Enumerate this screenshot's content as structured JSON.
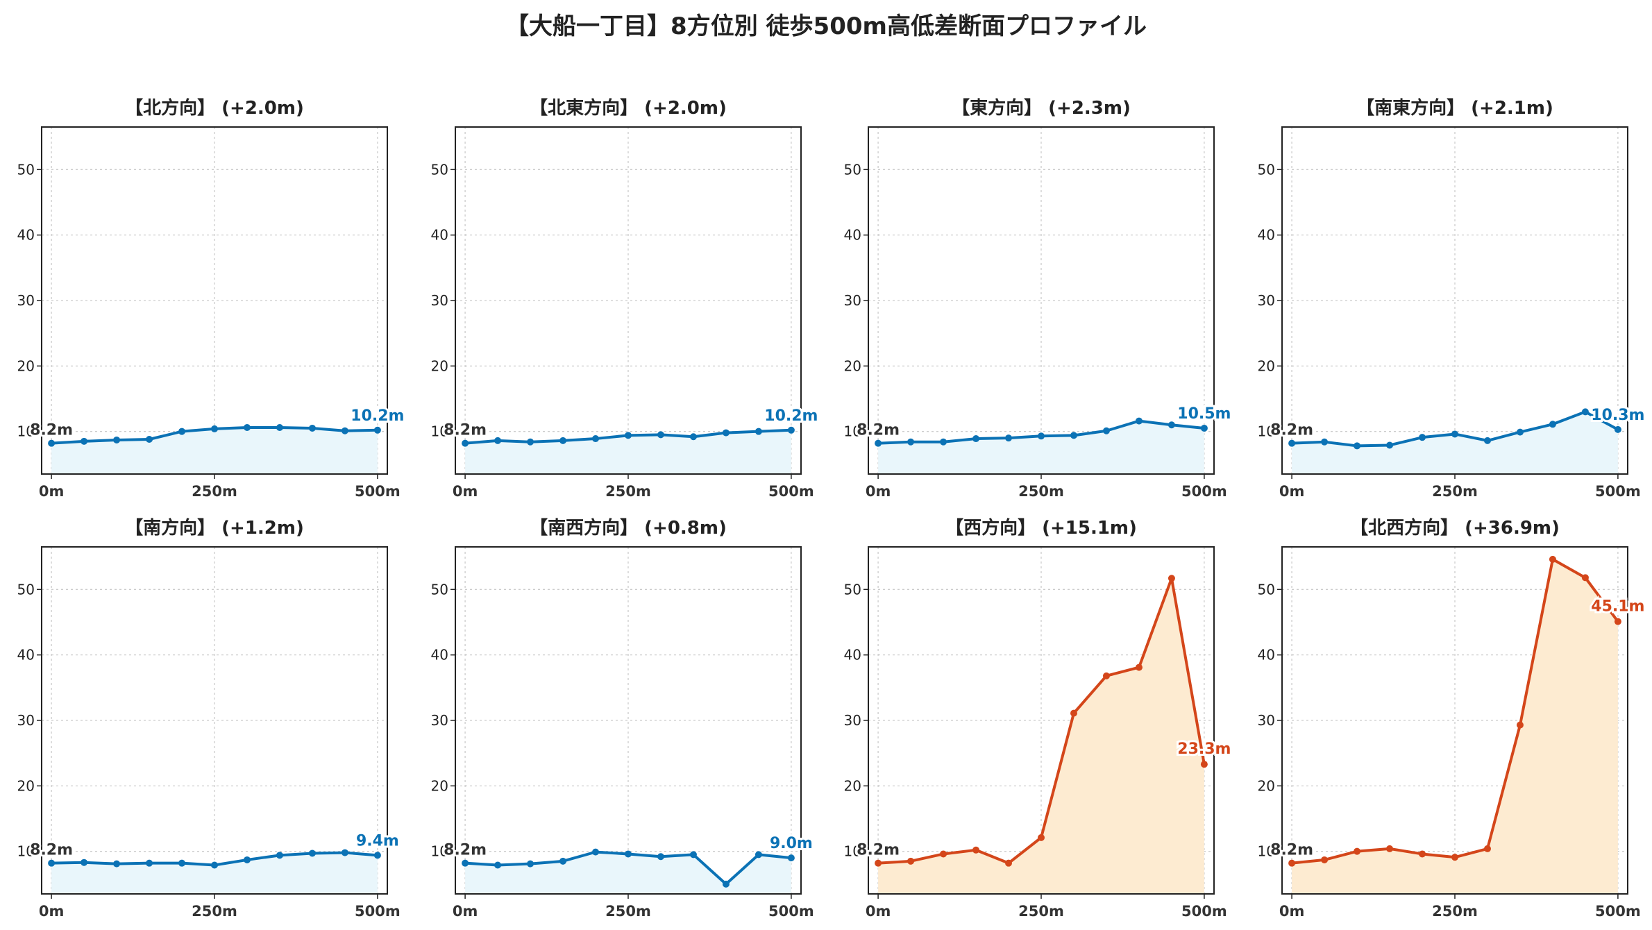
{
  "title": "【大船一丁目】8方位別 徒歩500m高低差断面プロファイル",
  "colors": {
    "flat_line": "#0b72b5",
    "flat_fill": "#e9f6fb",
    "steep_line": "#d4461a",
    "steep_fill": "#fdebd1",
    "grid": "#cccccc",
    "axis": "#222222",
    "start_label": "#333333"
  },
  "chart_data": [
    {
      "type": "area",
      "title": "【北方向】 (+2.0m)",
      "x": [
        0,
        50,
        100,
        150,
        200,
        250,
        300,
        350,
        400,
        450,
        500
      ],
      "values": [
        8.2,
        8.5,
        8.7,
        8.8,
        10.0,
        10.4,
        10.6,
        10.6,
        10.5,
        10.1,
        10.2
      ],
      "start_label": "8.2m",
      "end_label": "10.2m",
      "style": "flat",
      "ylim": [
        3.5,
        56.5
      ],
      "yticks": [
        10,
        20,
        30,
        40,
        50
      ],
      "ytick_labels": [
        "10",
        "20",
        "30",
        "40",
        "50"
      ],
      "xticks": [
        0,
        250,
        500
      ],
      "xtick_labels": [
        "0m",
        "250m",
        "500m"
      ],
      "grid": true
    },
    {
      "type": "area",
      "title": "【北東方向】 (+2.0m)",
      "x": [
        0,
        50,
        100,
        150,
        200,
        250,
        300,
        350,
        400,
        450,
        500
      ],
      "values": [
        8.2,
        8.6,
        8.4,
        8.6,
        8.9,
        9.4,
        9.5,
        9.2,
        9.8,
        10.0,
        10.2
      ],
      "start_label": "8.2m",
      "end_label": "10.2m",
      "style": "flat",
      "ylim": [
        3.5,
        56.5
      ],
      "yticks": [
        10,
        20,
        30,
        40,
        50
      ],
      "ytick_labels": [
        "10",
        "20",
        "30",
        "40",
        "50"
      ],
      "xticks": [
        0,
        250,
        500
      ],
      "xtick_labels": [
        "0m",
        "250m",
        "500m"
      ],
      "grid": true
    },
    {
      "type": "area",
      "title": "【東方向】 (+2.3m)",
      "x": [
        0,
        50,
        100,
        150,
        200,
        250,
        300,
        350,
        400,
        450,
        500
      ],
      "values": [
        8.2,
        8.4,
        8.4,
        8.9,
        9.0,
        9.3,
        9.4,
        10.1,
        11.6,
        11.0,
        10.5
      ],
      "start_label": "8.2m",
      "end_label": "10.5m",
      "style": "flat",
      "ylim": [
        3.5,
        56.5
      ],
      "yticks": [
        10,
        20,
        30,
        40,
        50
      ],
      "ytick_labels": [
        "10",
        "20",
        "30",
        "40",
        "50"
      ],
      "xticks": [
        0,
        250,
        500
      ],
      "xtick_labels": [
        "0m",
        "250m",
        "500m"
      ],
      "grid": true
    },
    {
      "type": "area",
      "title": "【南東方向】 (+2.1m)",
      "x": [
        0,
        50,
        100,
        150,
        200,
        250,
        300,
        350,
        400,
        450,
        500
      ],
      "values": [
        8.2,
        8.4,
        7.8,
        7.9,
        9.1,
        9.6,
        8.6,
        9.9,
        11.1,
        13.0,
        10.3
      ],
      "start_label": "8.2m",
      "end_label": "10.3m",
      "style": "flat",
      "ylim": [
        3.5,
        56.5
      ],
      "yticks": [
        10,
        20,
        30,
        40,
        50
      ],
      "ytick_labels": [
        "10",
        "20",
        "30",
        "40",
        "50"
      ],
      "xticks": [
        0,
        250,
        500
      ],
      "xtick_labels": [
        "0m",
        "250m",
        "500m"
      ],
      "grid": true
    },
    {
      "type": "area",
      "title": "【南方向】 (+1.2m)",
      "x": [
        0,
        50,
        100,
        150,
        200,
        250,
        300,
        350,
        400,
        450,
        500
      ],
      "values": [
        8.2,
        8.3,
        8.1,
        8.2,
        8.2,
        7.9,
        8.7,
        9.4,
        9.7,
        9.8,
        9.4
      ],
      "start_label": "8.2m",
      "end_label": "9.4m",
      "style": "flat",
      "ylim": [
        3.5,
        56.5
      ],
      "yticks": [
        10,
        20,
        30,
        40,
        50
      ],
      "ytick_labels": [
        "10",
        "20",
        "30",
        "40",
        "50"
      ],
      "xticks": [
        0,
        250,
        500
      ],
      "xtick_labels": [
        "0m",
        "250m",
        "500m"
      ],
      "grid": true
    },
    {
      "type": "area",
      "title": "【南西方向】 (+0.8m)",
      "x": [
        0,
        50,
        100,
        150,
        200,
        250,
        300,
        350,
        400,
        450,
        500
      ],
      "values": [
        8.2,
        7.9,
        8.1,
        8.5,
        9.9,
        9.6,
        9.2,
        9.5,
        5.0,
        9.5,
        9.0
      ],
      "start_label": "8.2m",
      "end_label": "9.0m",
      "style": "flat",
      "ylim": [
        3.5,
        56.5
      ],
      "yticks": [
        10,
        20,
        30,
        40,
        50
      ],
      "ytick_labels": [
        "10",
        "20",
        "30",
        "40",
        "50"
      ],
      "xticks": [
        0,
        250,
        500
      ],
      "xtick_labels": [
        "0m",
        "250m",
        "500m"
      ],
      "grid": true
    },
    {
      "type": "area",
      "title": "【西方向】 (+15.1m)",
      "x": [
        0,
        50,
        100,
        150,
        200,
        250,
        300,
        350,
        400,
        450,
        500
      ],
      "values": [
        8.2,
        8.5,
        9.6,
        10.2,
        8.2,
        12.1,
        31.1,
        36.8,
        38.1,
        51.7,
        23.3
      ],
      "start_label": "8.2m",
      "end_label": "23.3m",
      "style": "steep",
      "ylim": [
        3.5,
        56.5
      ],
      "yticks": [
        10,
        20,
        30,
        40,
        50
      ],
      "ytick_labels": [
        "10",
        "20",
        "30",
        "40",
        "50"
      ],
      "xticks": [
        0,
        250,
        500
      ],
      "xtick_labels": [
        "0m",
        "250m",
        "500m"
      ],
      "grid": true
    },
    {
      "type": "area",
      "title": "【北西方向】 (+36.9m)",
      "x": [
        0,
        50,
        100,
        150,
        200,
        250,
        300,
        350,
        400,
        450,
        500
      ],
      "values": [
        8.2,
        8.7,
        10.0,
        10.4,
        9.6,
        9.1,
        10.4,
        29.3,
        54.6,
        51.8,
        45.1
      ],
      "start_label": "8.2m",
      "end_label": "45.1m",
      "style": "steep",
      "ylim": [
        3.5,
        56.5
      ],
      "yticks": [
        10,
        20,
        30,
        40,
        50
      ],
      "ytick_labels": [
        "10",
        "20",
        "30",
        "40",
        "50"
      ],
      "xticks": [
        0,
        250,
        500
      ],
      "xtick_labels": [
        "0m",
        "250m",
        "500m"
      ],
      "grid": true
    }
  ]
}
